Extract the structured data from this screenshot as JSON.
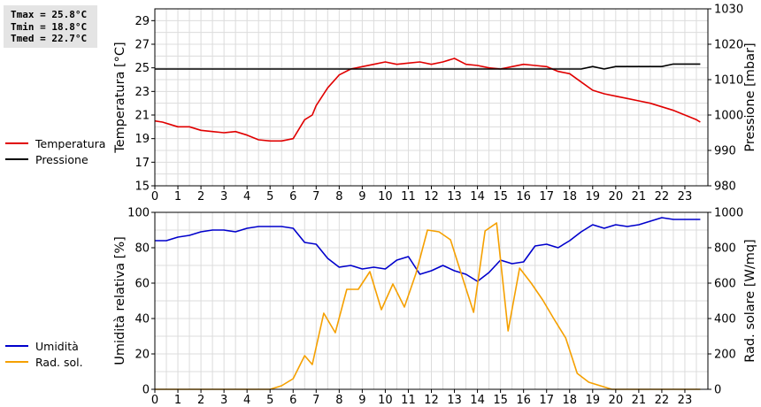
{
  "stats": {
    "tmax": "Tmax = 25.8°C",
    "tmin": "Tmin = 18.8°C",
    "tmed": "Tmed = 22.7°C"
  },
  "chart_data": [
    {
      "type": "line",
      "ylabel_left": "Temperatura [°C]",
      "ylabel_right": "Pressione [mbar]",
      "ylim_left": [
        15,
        30
      ],
      "ylim_right": [
        980,
        1030
      ],
      "yticks_left": [
        15,
        17,
        19,
        21,
        23,
        25,
        27,
        29
      ],
      "yticks_right": [
        980,
        990,
        1000,
        1010,
        1020,
        1030
      ],
      "xlim": [
        0,
        24
      ],
      "xticks": [
        0,
        1,
        2,
        3,
        4,
        5,
        6,
        7,
        8,
        9,
        10,
        11,
        12,
        13,
        14,
        15,
        16,
        17,
        18,
        19,
        20,
        21,
        22,
        23
      ],
      "grid": true,
      "legend": [
        {
          "name": "Temperatura",
          "color": "#e00000"
        },
        {
          "name": "Pressione",
          "color": "#000000"
        }
      ],
      "series": [
        {
          "name": "Temperatura",
          "color": "#e00000",
          "axis": "left",
          "points": [
            [
              0,
              20.5
            ],
            [
              0.33,
              20.4
            ],
            [
              0.67,
              20.2
            ],
            [
              1,
              20.0
            ],
            [
              1.5,
              20.0
            ],
            [
              2,
              19.7
            ],
            [
              2.5,
              19.6
            ],
            [
              3,
              19.5
            ],
            [
              3.5,
              19.6
            ],
            [
              4,
              19.3
            ],
            [
              4.5,
              18.9
            ],
            [
              5,
              18.8
            ],
            [
              5.5,
              18.8
            ],
            [
              6,
              19.0
            ],
            [
              6.5,
              20.6
            ],
            [
              6.83,
              21.0
            ],
            [
              7,
              21.8
            ],
            [
              7.5,
              23.3
            ],
            [
              8,
              24.4
            ],
            [
              8.5,
              24.9
            ],
            [
              9,
              25.1
            ],
            [
              9.5,
              25.3
            ],
            [
              10,
              25.5
            ],
            [
              10.5,
              25.3
            ],
            [
              11,
              25.4
            ],
            [
              11.5,
              25.5
            ],
            [
              12,
              25.3
            ],
            [
              12.5,
              25.5
            ],
            [
              13,
              25.8
            ],
            [
              13.5,
              25.3
            ],
            [
              14,
              25.2
            ],
            [
              14.5,
              25.0
            ],
            [
              15,
              24.9
            ],
            [
              15.5,
              25.1
            ],
            [
              16,
              25.3
            ],
            [
              16.5,
              25.2
            ],
            [
              17,
              25.1
            ],
            [
              17.5,
              24.7
            ],
            [
              18,
              24.5
            ],
            [
              18.5,
              23.8
            ],
            [
              19,
              23.1
            ],
            [
              19.5,
              22.8
            ],
            [
              20,
              22.6
            ],
            [
              20.5,
              22.4
            ],
            [
              21,
              22.2
            ],
            [
              21.5,
              22.0
            ],
            [
              22,
              21.7
            ],
            [
              22.5,
              21.4
            ],
            [
              23,
              21.0
            ],
            [
              23.5,
              20.6
            ],
            [
              23.67,
              20.4
            ]
          ]
        },
        {
          "name": "Pressione",
          "color": "#000000",
          "axis": "right",
          "points": [
            [
              0,
              1013
            ],
            [
              18.5,
              1013
            ],
            [
              19,
              1013.7
            ],
            [
              19.5,
              1013
            ],
            [
              20,
              1013.7
            ],
            [
              22,
              1013.7
            ],
            [
              22.5,
              1014.4
            ],
            [
              23.67,
              1014.4
            ]
          ]
        }
      ]
    },
    {
      "type": "line",
      "ylabel_left": "Umidità relativa [%]",
      "ylabel_right": "Rad. solare [W/mq]",
      "ylim_left": [
        0,
        100
      ],
      "ylim_right": [
        0,
        1000
      ],
      "yticks_left": [
        0,
        20,
        40,
        60,
        80,
        100
      ],
      "yticks_right": [
        0,
        200,
        400,
        600,
        800,
        1000
      ],
      "xlim": [
        0,
        24
      ],
      "xticks": [
        0,
        1,
        2,
        3,
        4,
        5,
        6,
        7,
        8,
        9,
        10,
        11,
        12,
        13,
        14,
        15,
        16,
        17,
        18,
        19,
        20,
        21,
        22,
        23
      ],
      "grid": true,
      "legend": [
        {
          "name": "Umidità",
          "color": "#0000cc"
        },
        {
          "name": "Rad. sol.",
          "color": "#f5a000"
        }
      ],
      "series": [
        {
          "name": "Umidità",
          "color": "#0000cc",
          "axis": "left",
          "points": [
            [
              0,
              84
            ],
            [
              0.5,
              84
            ],
            [
              1,
              86
            ],
            [
              1.5,
              87
            ],
            [
              2,
              89
            ],
            [
              2.5,
              90
            ],
            [
              3,
              90
            ],
            [
              3.5,
              89
            ],
            [
              4,
              91
            ],
            [
              4.5,
              92
            ],
            [
              5,
              92
            ],
            [
              5.5,
              92
            ],
            [
              6,
              91
            ],
            [
              6.5,
              83
            ],
            [
              7,
              82
            ],
            [
              7.5,
              74
            ],
            [
              8,
              69
            ],
            [
              8.5,
              70
            ],
            [
              9,
              68
            ],
            [
              9.5,
              69
            ],
            [
              10,
              68
            ],
            [
              10.5,
              73
            ],
            [
              11,
              75
            ],
            [
              11.5,
              65
            ],
            [
              12,
              67
            ],
            [
              12.5,
              70
            ],
            [
              13,
              67
            ],
            [
              13.5,
              65
            ],
            [
              14,
              61
            ],
            [
              14.5,
              66
            ],
            [
              15,
              73
            ],
            [
              15.5,
              71
            ],
            [
              16,
              72
            ],
            [
              16.5,
              81
            ],
            [
              17,
              82
            ],
            [
              17.5,
              80
            ],
            [
              18,
              84
            ],
            [
              18.5,
              89
            ],
            [
              19,
              93
            ],
            [
              19.5,
              91
            ],
            [
              20,
              93
            ],
            [
              20.5,
              92
            ],
            [
              21,
              93
            ],
            [
              21.5,
              95
            ],
            [
              22,
              97
            ],
            [
              22.5,
              96
            ],
            [
              23,
              96
            ],
            [
              23.67,
              96
            ]
          ]
        },
        {
          "name": "Rad. sol.",
          "color": "#f5a000",
          "axis": "right",
          "points": [
            [
              0,
              0
            ],
            [
              5,
              0
            ],
            [
              5.5,
              20
            ],
            [
              6,
              60
            ],
            [
              6.5,
              190
            ],
            [
              6.83,
              140
            ],
            [
              7.33,
              430
            ],
            [
              7.83,
              320
            ],
            [
              8.33,
              565
            ],
            [
              8.83,
              565
            ],
            [
              9.33,
              665
            ],
            [
              9.83,
              450
            ],
            [
              10.33,
              595
            ],
            [
              10.83,
              465
            ],
            [
              11.33,
              655
            ],
            [
              11.83,
              900
            ],
            [
              12.33,
              890
            ],
            [
              12.83,
              845
            ],
            [
              13.33,
              640
            ],
            [
              13.83,
              435
            ],
            [
              14.33,
              895
            ],
            [
              14.83,
              940
            ],
            [
              15.33,
              330
            ],
            [
              15.83,
              685
            ],
            [
              16.33,
              600
            ],
            [
              16.83,
              505
            ],
            [
              17.33,
              395
            ],
            [
              17.83,
              290
            ],
            [
              18.33,
              90
            ],
            [
              18.83,
              40
            ],
            [
              19.33,
              20
            ],
            [
              19.83,
              0
            ],
            [
              23.67,
              0
            ]
          ]
        }
      ]
    }
  ]
}
